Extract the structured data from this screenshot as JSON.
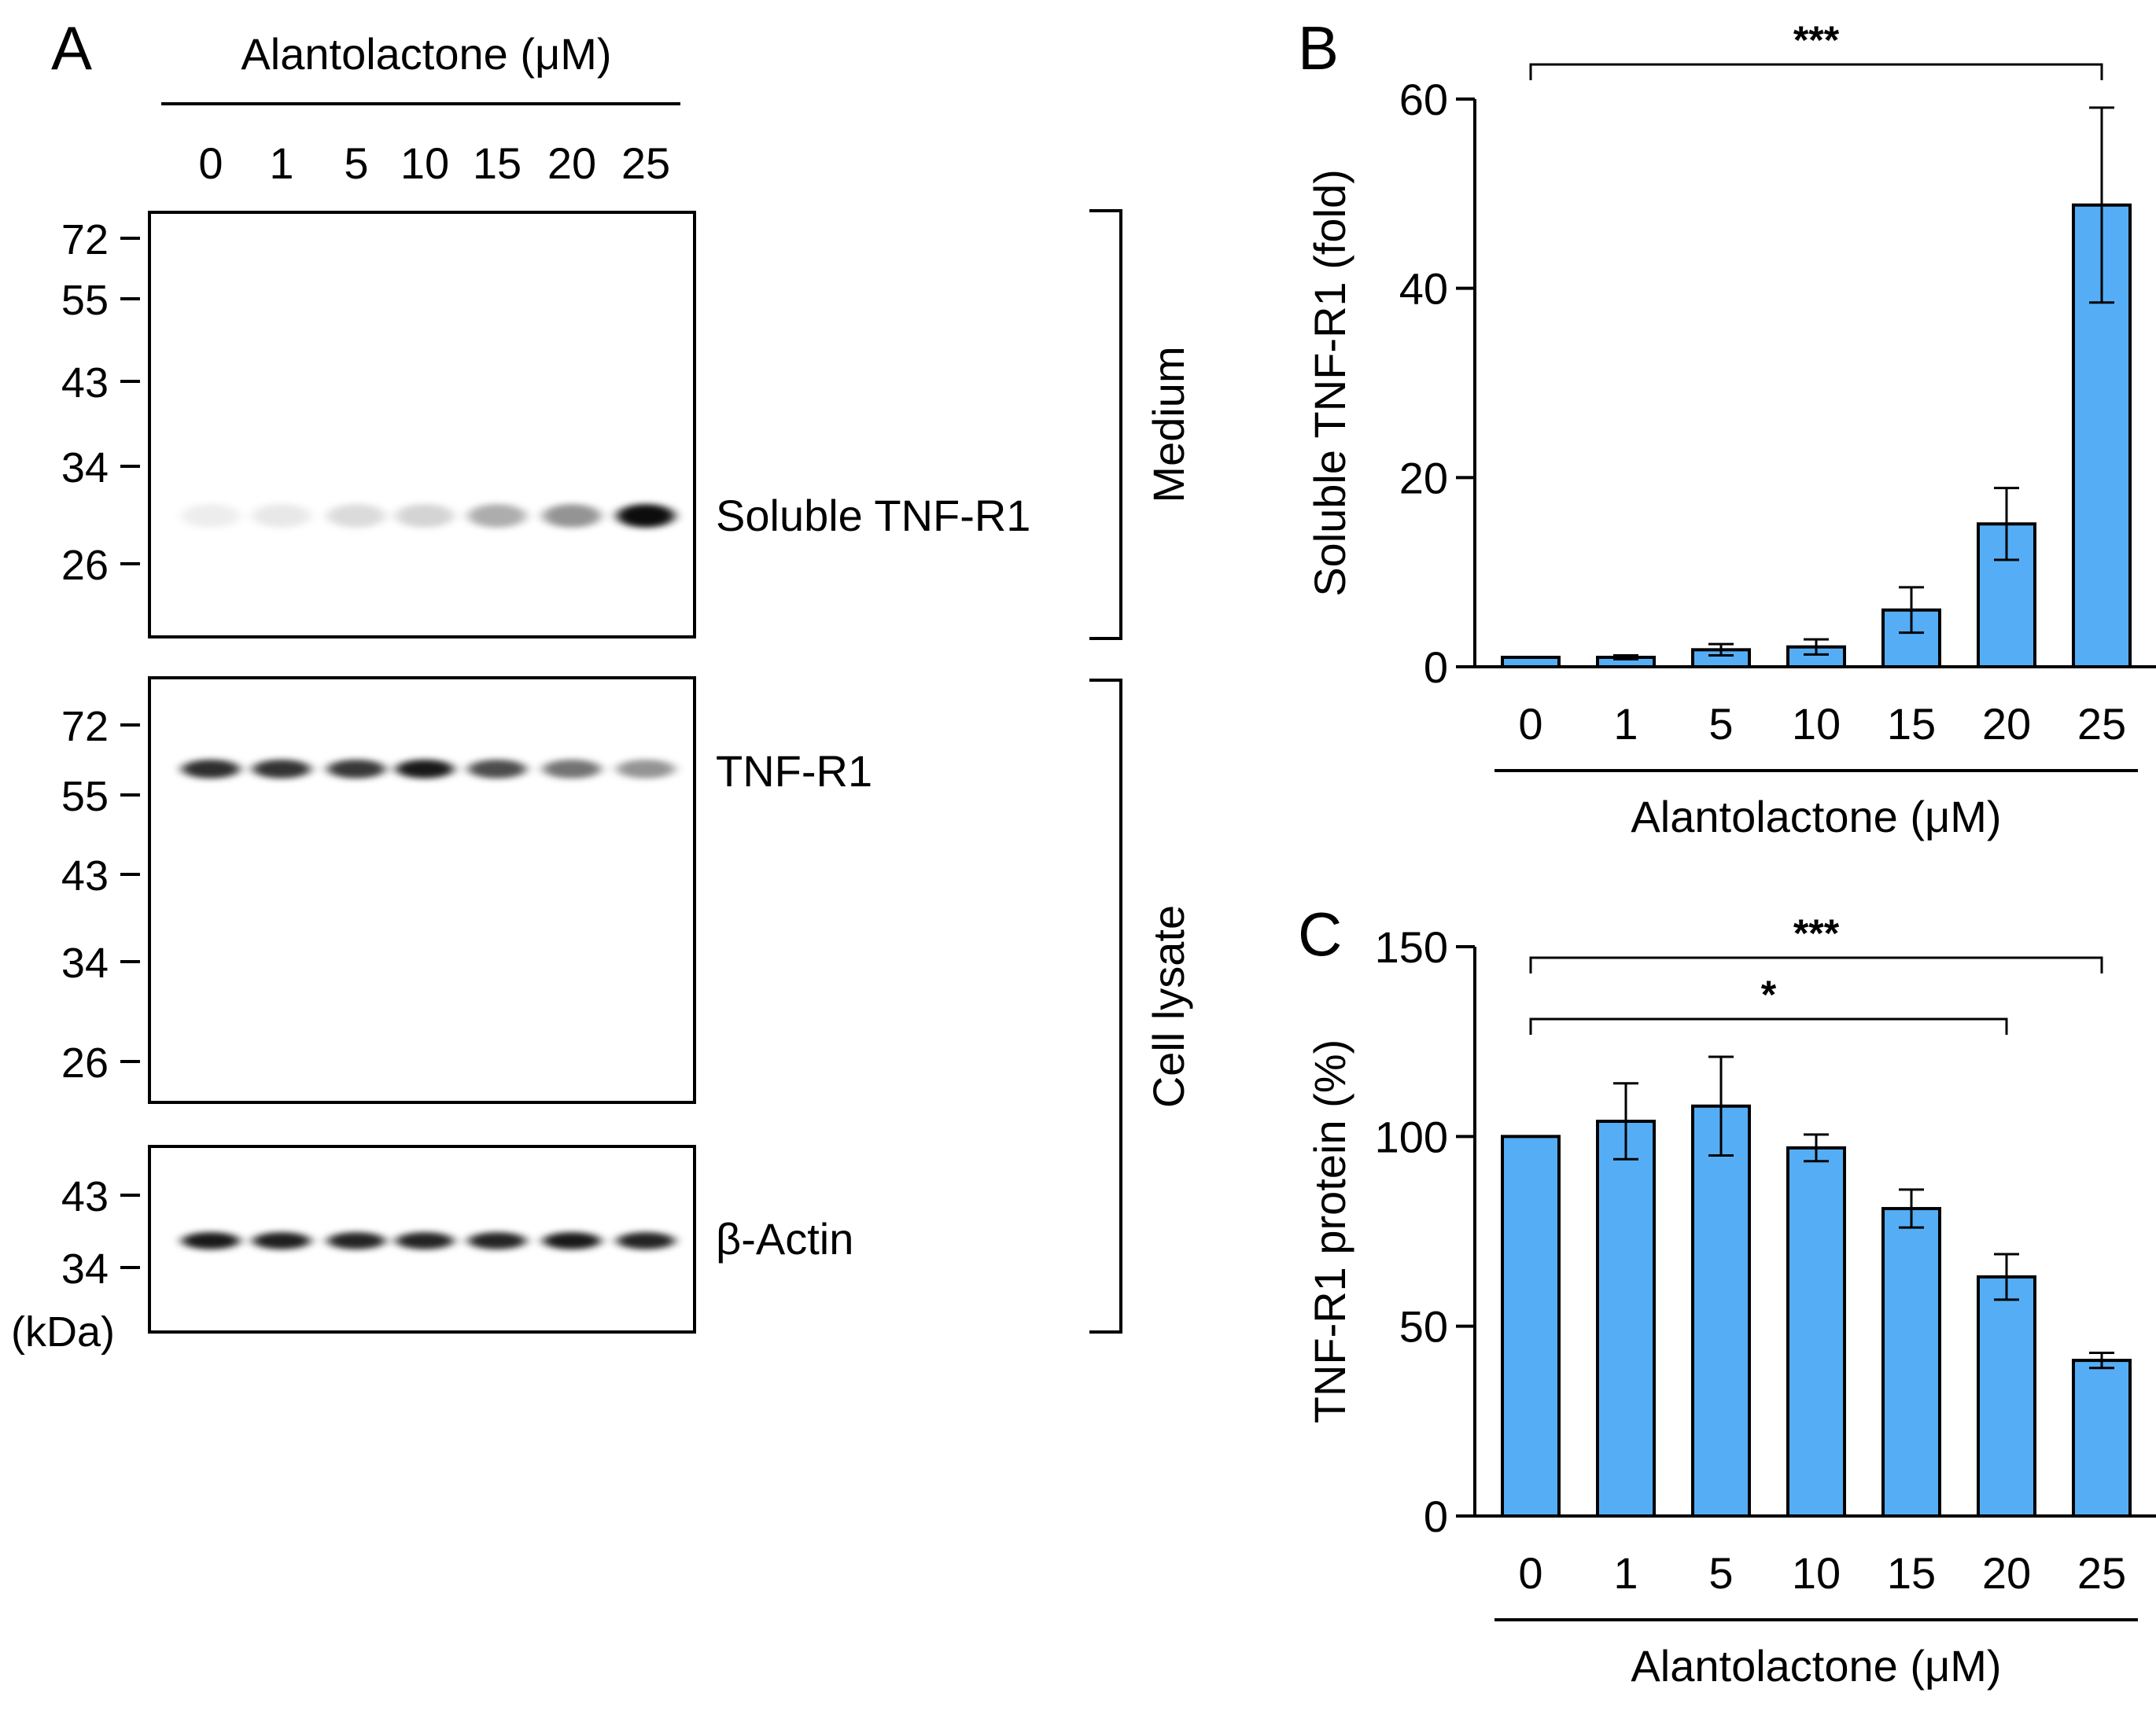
{
  "panels": {
    "a": "A",
    "b": "B",
    "c": "C"
  },
  "western_blot": {
    "treatment_label": "Alantolactone (μM)",
    "lanes": [
      "0",
      "1",
      "5",
      "10",
      "15",
      "20",
      "25"
    ],
    "kda_unit": "(kDa)",
    "blots": [
      {
        "label": "Soluble TNF-R1",
        "markers": [
          "72",
          "55",
          "43",
          "34",
          "26"
        ],
        "band_intensity": [
          0.07,
          0.09,
          0.14,
          0.17,
          0.32,
          0.42,
          0.95
        ]
      },
      {
        "label": "TNF-R1",
        "markers": [
          "72",
          "55",
          "43",
          "34",
          "26"
        ],
        "band_intensity": [
          0.82,
          0.8,
          0.78,
          0.9,
          0.7,
          0.55,
          0.42
        ]
      },
      {
        "label": "β-Actin",
        "markers": [
          "43",
          "34"
        ],
        "band_intensity": [
          0.9,
          0.88,
          0.86,
          0.86,
          0.86,
          0.9,
          0.86
        ]
      }
    ],
    "fractions": {
      "medium": "Medium",
      "cell_lysate": "Cell lysate"
    }
  },
  "colors": {
    "bar": "#55AEF5",
    "stroke": "#000000"
  },
  "chart_data": [
    {
      "type": "bar",
      "categories": [
        "0",
        "1",
        "5",
        "10",
        "15",
        "20",
        "25"
      ],
      "values": [
        1,
        1,
        1.8,
        2.1,
        6,
        15.1,
        48.8
      ],
      "errors": [
        0,
        0.2,
        0.6,
        0.8,
        2.4,
        3.8,
        10.3
      ],
      "xlabel": "Alantolactone (μM)",
      "ylabel": "Soluble TNF-R1 (fold)",
      "ylim": [
        0,
        60
      ],
      "yticks": [
        "0",
        "20",
        "40",
        "60"
      ],
      "significance": [
        {
          "from": "0",
          "to": "25",
          "label": "***"
        }
      ]
    },
    {
      "type": "bar",
      "categories": [
        "0",
        "1",
        "5",
        "10",
        "15",
        "20",
        "25"
      ],
      "values": [
        100,
        104,
        108,
        97,
        81,
        63,
        41
      ],
      "errors": [
        0,
        10,
        13,
        3.5,
        5,
        6,
        2
      ],
      "xlabel": "Alantolactone (μM)",
      "ylabel": "TNF-R1 protein (%)",
      "ylim": [
        0,
        150
      ],
      "yticks": [
        "0",
        "50",
        "100",
        "150"
      ],
      "significance": [
        {
          "from": "0",
          "to": "25",
          "label": "***"
        },
        {
          "from": "0",
          "to": "20",
          "label": "*"
        }
      ]
    }
  ]
}
